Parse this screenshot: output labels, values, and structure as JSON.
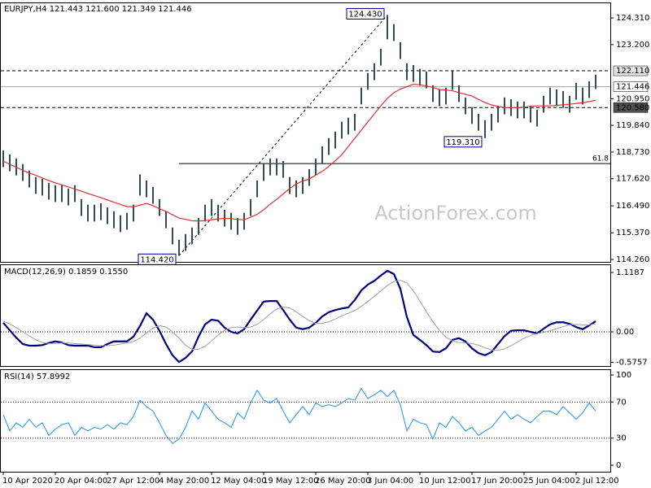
{
  "chart_data": [
    {
      "type": "ohlc",
      "title": "EURJPY,H4 121.443 121.600 121.349 121.446",
      "watermark": "ActionForex.com",
      "bar_color": "#2f4f4f",
      "high": [
        118.8,
        118.63,
        118.46,
        118.23,
        117.96,
        117.69,
        117.62,
        117.45,
        117.35,
        117.35,
        117.21,
        117.35,
        116.77,
        116.54,
        116.54,
        116.6,
        116.43,
        116.26,
        116.1,
        116.2,
        116.54,
        117.8,
        117.55,
        117.28,
        116.77,
        116.26,
        115.59,
        115.08,
        115.32,
        115.59,
        115.99,
        116.54,
        116.77,
        116.54,
        116.33,
        116.2,
        115.99,
        116.2,
        116.77,
        117.55,
        118.23,
        118.46,
        118.46,
        118.36,
        117.69,
        117.55,
        117.69,
        118.02,
        118.46,
        118.97,
        119.31,
        119.58,
        119.99,
        120.16,
        120.32,
        121.41,
        122.02,
        122.42,
        123.03,
        124.43,
        124.05,
        123.3,
        122.42,
        122.35,
        122.19,
        122.08,
        121.51,
        121.34,
        121.41,
        122.11,
        121.51,
        121.0,
        120.6,
        120.32,
        120.05,
        120.32,
        120.66,
        121.0,
        120.93,
        120.83,
        120.83,
        120.66,
        120.49,
        121.07,
        121.41,
        121.34,
        121.27,
        121.07,
        121.61,
        121.41,
        121.68,
        121.95
      ],
      "low": [
        118.1,
        117.93,
        117.76,
        117.53,
        117.26,
        116.99,
        116.92,
        116.75,
        116.65,
        116.65,
        116.51,
        116.65,
        116.07,
        115.84,
        115.84,
        115.9,
        115.73,
        115.56,
        115.4,
        115.5,
        115.84,
        116.92,
        116.85,
        116.58,
        116.07,
        115.56,
        114.89,
        114.42,
        114.62,
        114.89,
        115.29,
        115.84,
        116.07,
        115.84,
        115.63,
        115.5,
        115.29,
        115.5,
        116.07,
        116.85,
        117.53,
        117.76,
        117.76,
        117.66,
        116.99,
        116.85,
        116.99,
        117.32,
        117.76,
        118.27,
        118.61,
        118.88,
        119.29,
        119.46,
        119.62,
        120.71,
        121.32,
        121.72,
        122.33,
        123.42,
        123.35,
        122.6,
        121.72,
        121.65,
        121.49,
        121.38,
        120.81,
        120.64,
        120.71,
        121.32,
        120.81,
        120.3,
        119.9,
        119.62,
        119.31,
        119.62,
        119.96,
        120.3,
        120.23,
        120.13,
        120.13,
        119.96,
        119.79,
        120.37,
        120.71,
        120.64,
        120.57,
        120.37,
        120.91,
        120.71,
        120.98,
        121.35
      ],
      "ma": {
        "color": "#e03030",
        "values": [
          118.35,
          118.22,
          118.1,
          117.97,
          117.86,
          117.76,
          117.65,
          117.54,
          117.45,
          117.36,
          117.28,
          117.19,
          117.1,
          117.01,
          116.92,
          116.83,
          116.74,
          116.64,
          116.55,
          116.46,
          116.45,
          116.52,
          116.59,
          116.5,
          116.37,
          116.26,
          116.12,
          115.98,
          115.93,
          115.87,
          115.86,
          115.88,
          115.91,
          115.95,
          115.97,
          115.96,
          115.93,
          115.91,
          116.02,
          116.14,
          116.33,
          116.56,
          116.76,
          116.99,
          117.21,
          117.4,
          117.53,
          117.61,
          117.77,
          117.93,
          118.13,
          118.37,
          118.62,
          118.96,
          119.3,
          119.64,
          119.98,
          120.32,
          120.65,
          120.97,
          121.2,
          121.35,
          121.45,
          121.55,
          121.53,
          121.48,
          121.42,
          121.33,
          121.31,
          121.28,
          121.2,
          121.13,
          121.06,
          120.92,
          120.79,
          120.69,
          120.63,
          120.58,
          120.58,
          120.58,
          120.6,
          120.63,
          120.65,
          120.65,
          120.65,
          120.67,
          120.7,
          120.72,
          120.75,
          120.78,
          120.83,
          120.88
        ]
      },
      "ylim": [
        114.16,
        124.92
      ],
      "yticks": [
        {
          "value": 124.31,
          "label": "124.310"
        },
        {
          "value": 123.2,
          "label": "123.200"
        },
        {
          "value": 120.95,
          "label": "120.950"
        },
        {
          "value": 119.84,
          "label": "119.840"
        },
        {
          "value": 118.73,
          "label": "118.730"
        },
        {
          "value": 117.62,
          "label": "117.620"
        },
        {
          "value": 116.49,
          "label": "116.490"
        },
        {
          "value": 115.37,
          "label": "115.370"
        },
        {
          "value": 114.26,
          "label": "114.260"
        }
      ],
      "levels": [
        {
          "value": 122.11,
          "label": "122.110",
          "line": "dashed",
          "box_fill": "#e4e4e4",
          "text_color": "#000000"
        },
        {
          "value": 121.446,
          "label": "121.446",
          "line": "solid",
          "box_fill": "#ffffff",
          "text_color": "#000000"
        },
        {
          "value": 120.58,
          "label": "120.580",
          "line": "dashed",
          "box_fill": "#505050",
          "text_color": "#ffffff"
        }
      ],
      "fib": {
        "label": "61.8",
        "value": 118.25,
        "start": 27
      },
      "annotations": [
        {
          "label": "124.430",
          "value": 124.43,
          "x": 59,
          "side": "left-top"
        },
        {
          "label": "114.420",
          "value": 114.42,
          "x": 27,
          "side": "left-bottom"
        },
        {
          "label": "119.310",
          "value": 119.31,
          "x": 74,
          "side": "left-bottom"
        }
      ]
    },
    {
      "type": "line",
      "title": "MACD(12,26,9) 0.1859 0.1550",
      "series": [
        {
          "color": "#000080",
          "width": 2.2,
          "values": [
            0.17,
            0.03,
            -0.11,
            -0.23,
            -0.26,
            -0.26,
            -0.25,
            -0.21,
            -0.18,
            -0.2,
            -0.25,
            -0.26,
            -0.26,
            -0.26,
            -0.29,
            -0.29,
            -0.23,
            -0.18,
            -0.18,
            -0.18,
            -0.09,
            0.11,
            0.35,
            0.23,
            0.02,
            -0.23,
            -0.44,
            -0.57,
            -0.49,
            -0.37,
            -0.09,
            0.14,
            0.23,
            0.21,
            0.08,
            0.0,
            -0.03,
            0.05,
            0.23,
            0.4,
            0.57,
            0.58,
            0.58,
            0.41,
            0.23,
            0.08,
            0.05,
            0.08,
            0.17,
            0.29,
            0.37,
            0.41,
            0.44,
            0.46,
            0.6,
            0.78,
            0.89,
            0.96,
            1.06,
            1.15,
            1.09,
            0.81,
            0.28,
            -0.06,
            -0.15,
            -0.25,
            -0.37,
            -0.38,
            -0.31,
            -0.15,
            -0.12,
            -0.18,
            -0.31,
            -0.4,
            -0.44,
            -0.38,
            -0.23,
            -0.08,
            0.02,
            0.03,
            0.03,
            0.0,
            -0.03,
            0.06,
            0.14,
            0.18,
            0.18,
            0.15,
            0.09,
            0.05,
            0.12,
            0.2
          ]
        },
        {
          "color": "#a0a0a0",
          "width": 1,
          "values": [
            0.2,
            0.15,
            0.08,
            0.0,
            -0.08,
            -0.15,
            -0.2,
            -0.22,
            -0.22,
            -0.21,
            -0.21,
            -0.22,
            -0.23,
            -0.24,
            -0.25,
            -0.26,
            -0.26,
            -0.25,
            -0.23,
            -0.21,
            -0.18,
            -0.12,
            -0.02,
            0.07,
            0.12,
            0.09,
            0.0,
            -0.12,
            -0.25,
            -0.33,
            -0.33,
            -0.27,
            -0.17,
            -0.06,
            0.03,
            0.08,
            0.09,
            0.08,
            0.09,
            0.14,
            0.23,
            0.34,
            0.43,
            0.47,
            0.45,
            0.38,
            0.29,
            0.21,
            0.16,
            0.16,
            0.19,
            0.24,
            0.3,
            0.35,
            0.4,
            0.48,
            0.57,
            0.67,
            0.77,
            0.87,
            0.95,
            0.97,
            0.92,
            0.77,
            0.58,
            0.38,
            0.19,
            0.03,
            -0.1,
            -0.17,
            -0.2,
            -0.21,
            -0.22,
            -0.25,
            -0.3,
            -0.34,
            -0.35,
            -0.32,
            -0.26,
            -0.19,
            -0.12,
            -0.07,
            -0.03,
            -0.01,
            0.02,
            0.06,
            0.1,
            0.13,
            0.14,
            0.13,
            0.13,
            0.15
          ]
        }
      ],
      "ylim": [
        -0.643,
        1.256
      ],
      "yticks": [
        1.1187,
        {
          "value": 0,
          "label": "0.00"
        },
        -0.5757
      ],
      "levels": [
        0
      ]
    },
    {
      "type": "line",
      "title": "RSI(14) 57.8992",
      "series": [
        {
          "color": "#1e90ff",
          "width": 1,
          "values": [
            56,
            38,
            47,
            42,
            51,
            42,
            47,
            33,
            40,
            45,
            47,
            33,
            42,
            38,
            42,
            40,
            45,
            40,
            47,
            45,
            54,
            72,
            65,
            60,
            47,
            33,
            24,
            29,
            42,
            60,
            51,
            69,
            60,
            51,
            47,
            42,
            58,
            51,
            69,
            83,
            72,
            69,
            74,
            60,
            47,
            56,
            65,
            56,
            69,
            65,
            67,
            65,
            69,
            74,
            72,
            85,
            74,
            78,
            83,
            76,
            83,
            67,
            38,
            51,
            47,
            45,
            29,
            47,
            42,
            54,
            47,
            38,
            42,
            33,
            38,
            42,
            51,
            60,
            51,
            56,
            51,
            47,
            54,
            60,
            60,
            56,
            65,
            58,
            51,
            58,
            69,
            60
          ]
        }
      ],
      "ylim": [
        -7.2,
        105.4
      ],
      "yticks": [
        100,
        70,
        30,
        0
      ],
      "levels": [
        70,
        30
      ],
      "categories": [
        "10 Apr 2020",
        null,
        null,
        null,
        null,
        null,
        null,
        null,
        "20 Apr 04:00",
        null,
        null,
        null,
        null,
        null,
        null,
        null,
        "27 Apr 12:00",
        null,
        null,
        null,
        null,
        null,
        null,
        null,
        "4 May 20:00",
        null,
        null,
        null,
        null,
        null,
        null,
        null,
        "12 May 04:00",
        null,
        null,
        null,
        null,
        null,
        null,
        null,
        "19 May 12:00",
        null,
        null,
        null,
        null,
        null,
        null,
        null,
        "26 May 20:00",
        null,
        null,
        null,
        null,
        null,
        null,
        null,
        "3 Jun 04:00",
        null,
        null,
        null,
        null,
        null,
        null,
        null,
        "10 Jun 12:00",
        null,
        null,
        null,
        null,
        null,
        null,
        null,
        "17 Jun 20:00",
        null,
        null,
        null,
        null,
        null,
        null,
        null,
        "25 Jun 04:00",
        null,
        null,
        null,
        null,
        null,
        null,
        null,
        "2 Jul 12:00",
        null,
        null,
        null
      ]
    }
  ]
}
